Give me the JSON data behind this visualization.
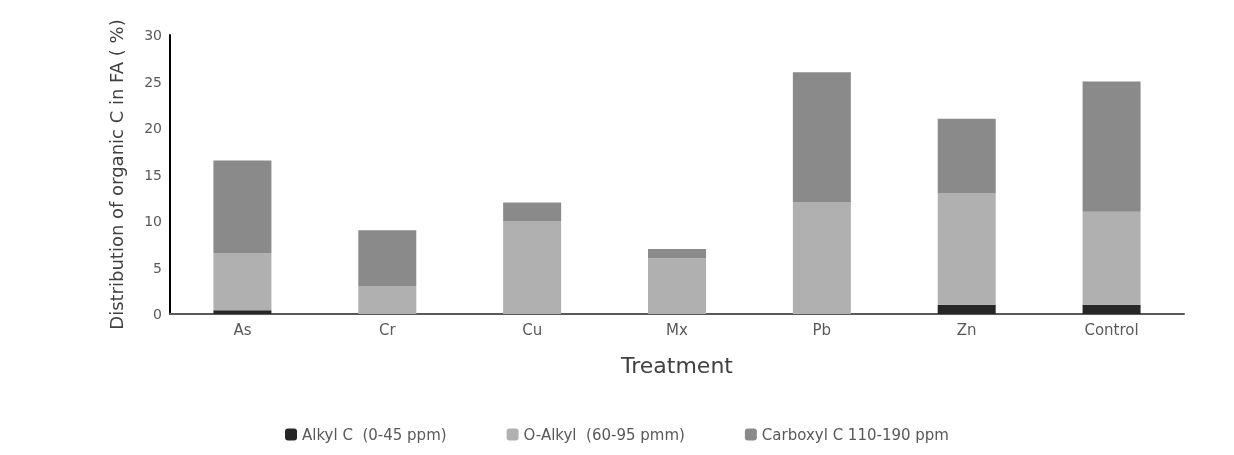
{
  "chart_data": {
    "type": "bar",
    "stacked": true,
    "xlabel": "Treatment",
    "ylabel": "Distribution of organic C in FA ( %)",
    "categories": [
      "As",
      "Cr",
      "Cu",
      "Mx",
      "Pb",
      "Zn",
      "Control"
    ],
    "series": [
      {
        "name": "Alkyl C  (0-45 ppm)",
        "color": "#262626",
        "values": [
          0.4,
          0,
          0,
          0,
          0,
          1,
          1
        ]
      },
      {
        "name": "O-Alkyl  (60-95 pmm)",
        "color": "#b0b0b0",
        "values": [
          6.1,
          3,
          10,
          6,
          12,
          12,
          10
        ]
      },
      {
        "name": "Carboxyl C 110-190 ppm",
        "color": "#8a8a8a",
        "values": [
          10,
          6,
          2,
          1,
          14,
          8,
          14
        ]
      }
    ],
    "ylim": [
      0,
      30
    ],
    "yticks": [
      0,
      5,
      10,
      15,
      20,
      25,
      30
    ],
    "grid": false,
    "legend": "bottom"
  }
}
